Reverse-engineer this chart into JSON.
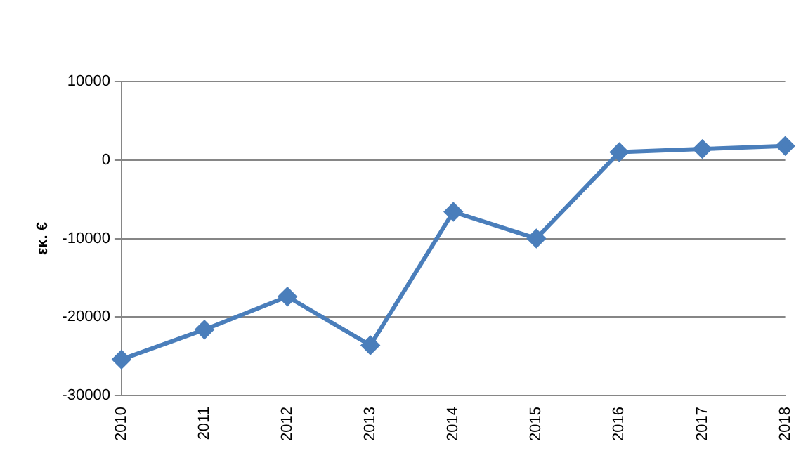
{
  "chart_data": {
    "type": "line",
    "ylabel": "εκ. €",
    "categories": [
      "2010",
      "2011",
      "2012",
      "2013",
      "2014",
      "2015",
      "2016",
      "2017",
      "2018"
    ],
    "series": [
      {
        "color": "#4a7ebb",
        "values": [
          -25400,
          -21600,
          -17400,
          -23600,
          -6600,
          -10000,
          1000,
          1400,
          1800
        ]
      }
    ],
    "ylim": [
      -30000,
      10000
    ],
    "yticks": [
      -30000,
      -20000,
      -10000,
      0,
      10000
    ],
    "grid": "y",
    "legend": false,
    "marker": "diamond",
    "line_style": "solid"
  }
}
